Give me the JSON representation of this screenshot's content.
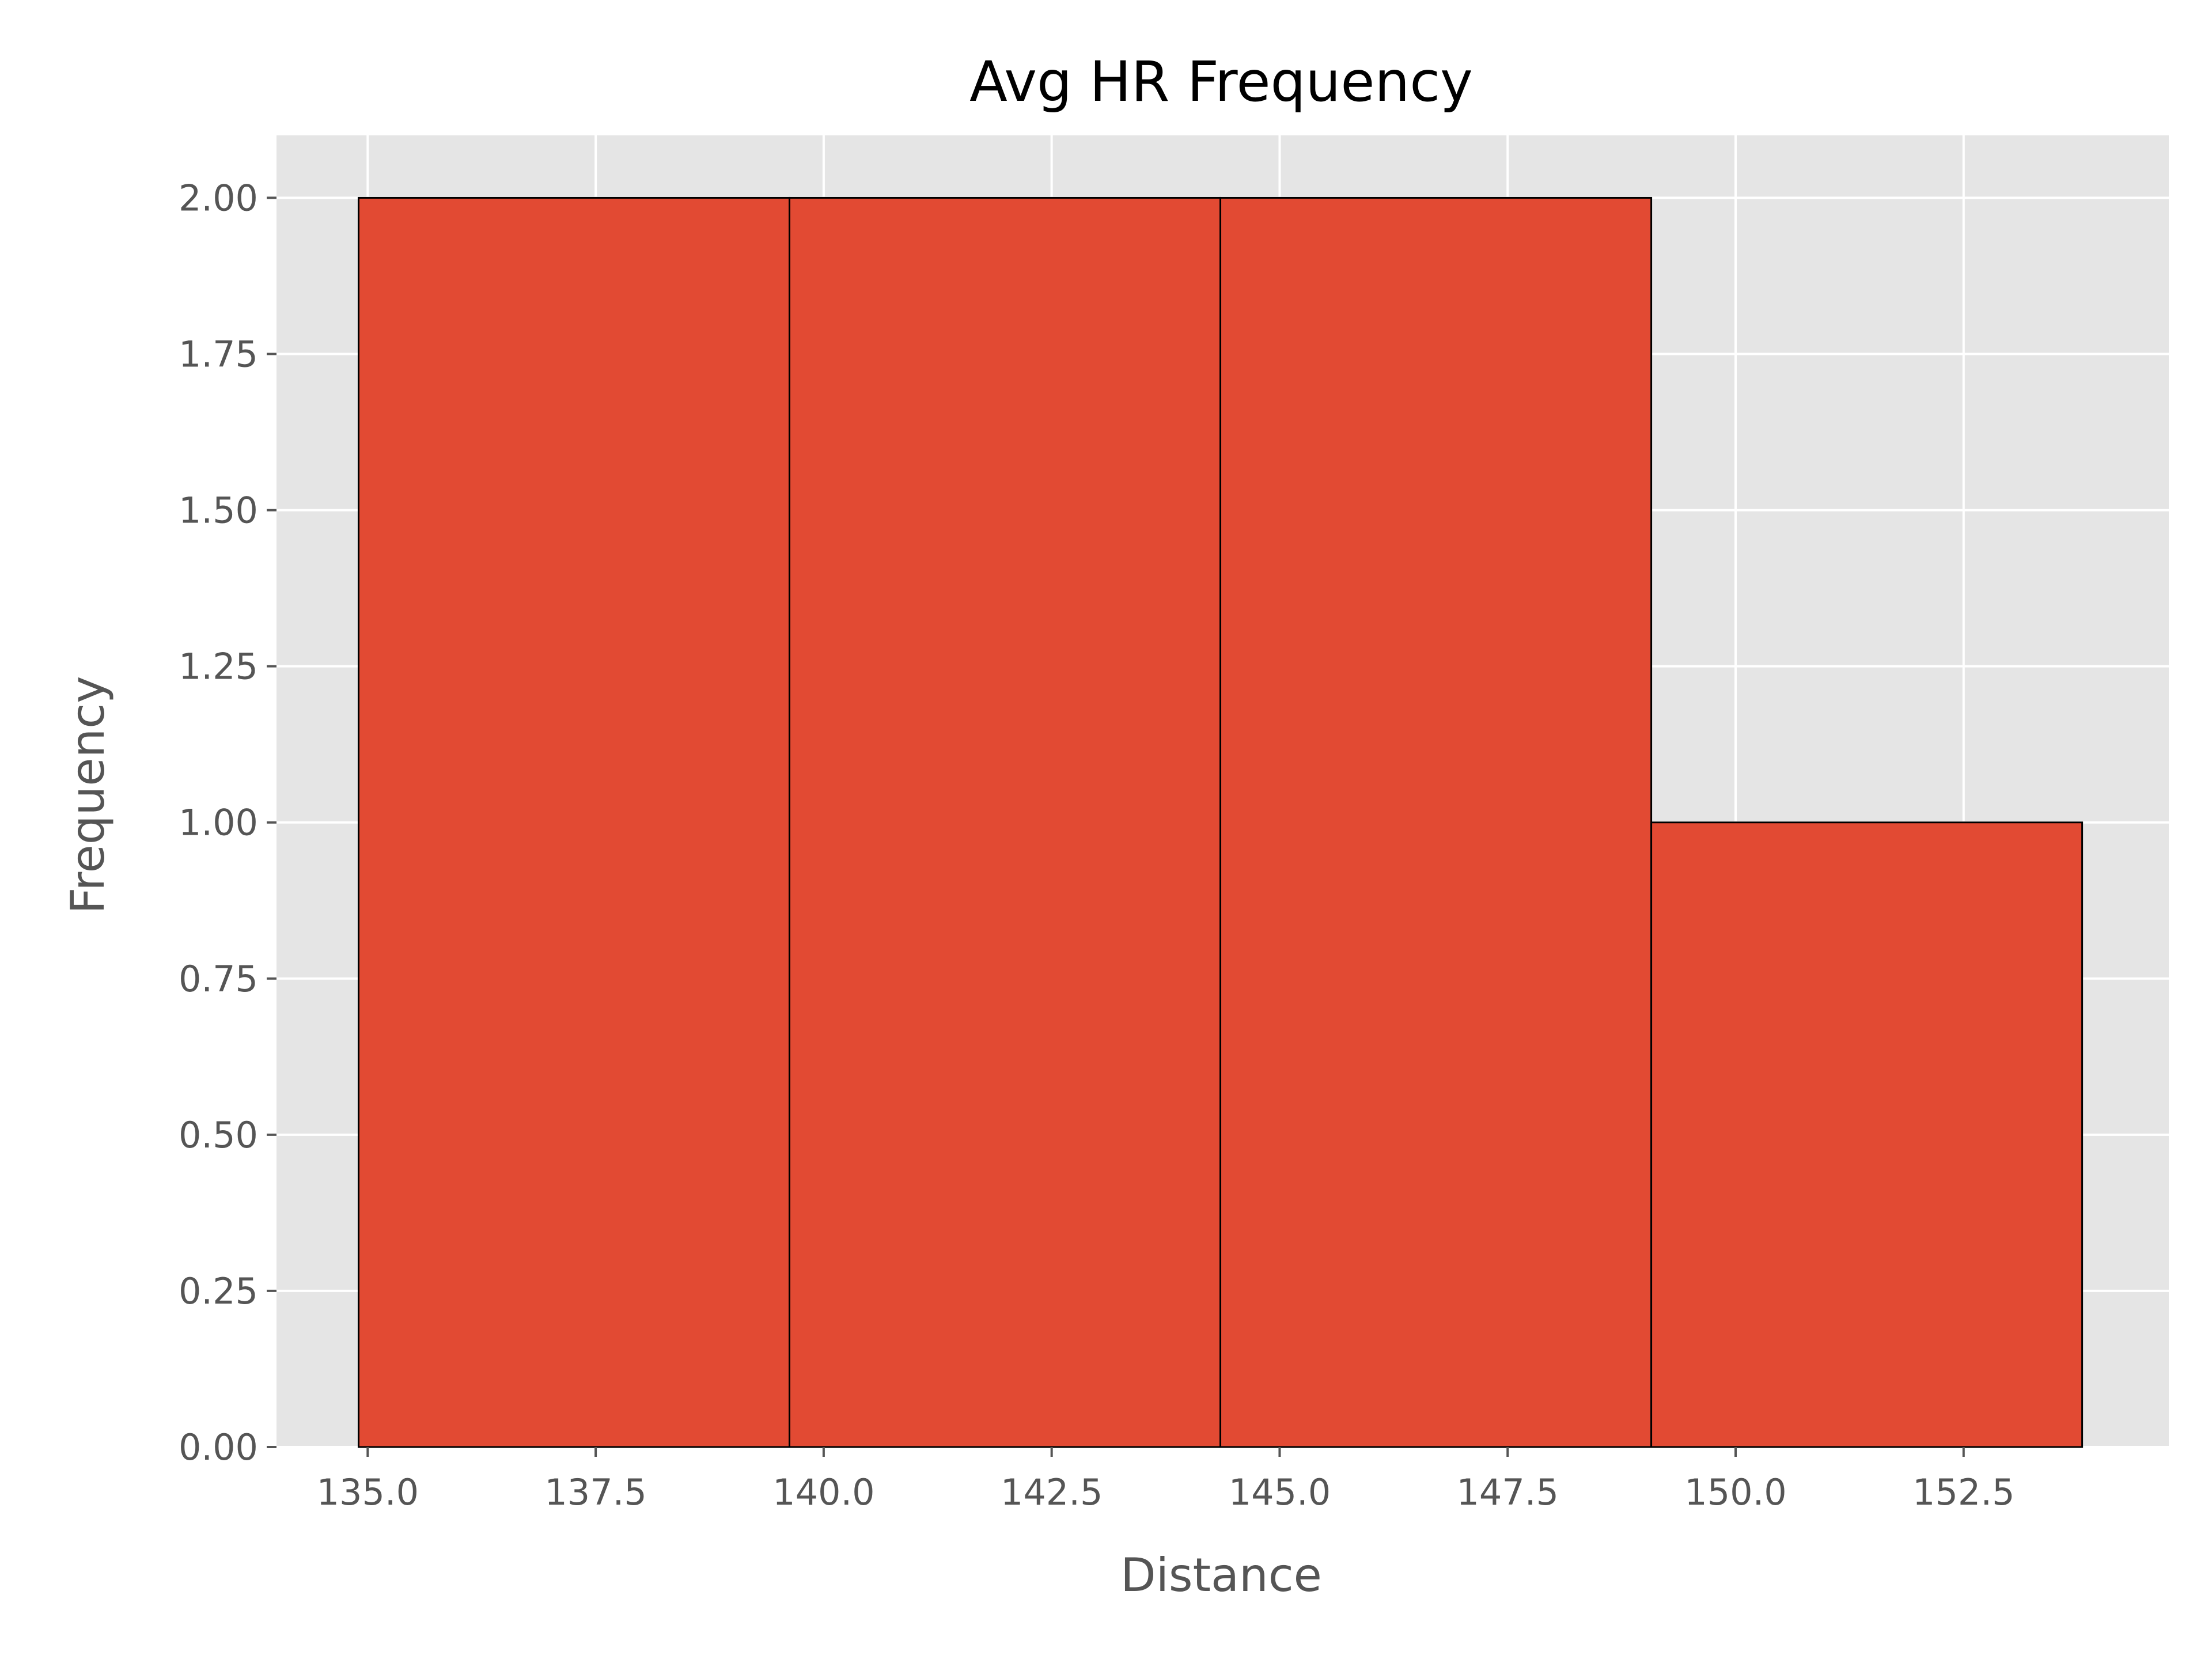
{
  "chart_data": {
    "type": "bar",
    "title": "Avg HR Frequency",
    "xlabel": "Distance",
    "ylabel": "Frequency",
    "bins": [
      {
        "start": 134.9,
        "end": 139.625,
        "count": 2
      },
      {
        "start": 139.625,
        "end": 144.35,
        "count": 2
      },
      {
        "start": 144.35,
        "end": 149.075,
        "count": 2
      },
      {
        "start": 149.075,
        "end": 153.8,
        "count": 1
      }
    ],
    "xlim": [
      134.0,
      154.75
    ],
    "ylim": [
      0,
      2.1
    ],
    "xticks": [
      "135.0",
      "137.5",
      "140.0",
      "142.5",
      "145.0",
      "147.5",
      "150.0",
      "152.5"
    ],
    "yticks": [
      "0.00",
      "0.25",
      "0.50",
      "0.75",
      "1.00",
      "1.25",
      "1.50",
      "1.75",
      "2.00"
    ],
    "grid": true,
    "colors": {
      "bar": "#e24a33",
      "bar_edge": "#000000",
      "plot_background": "#e5e5e5",
      "grid": "#ffffff",
      "tick": "#555555"
    }
  }
}
